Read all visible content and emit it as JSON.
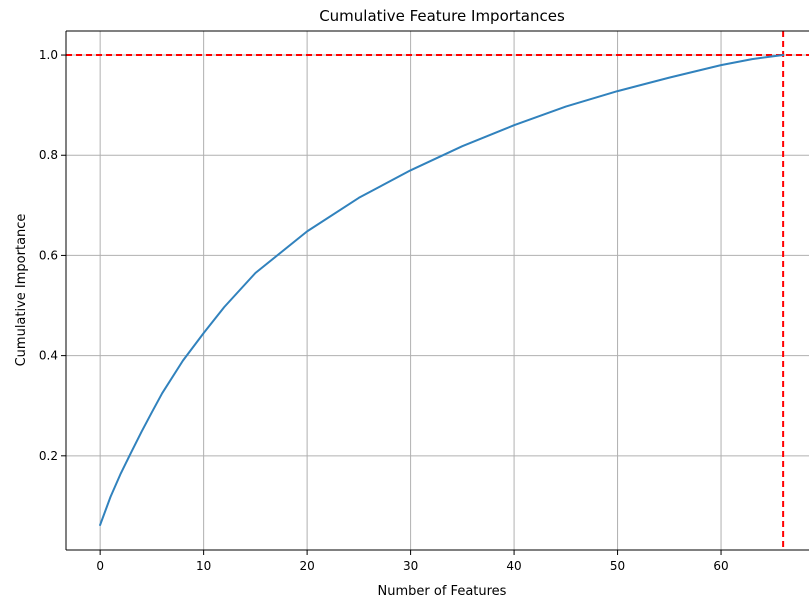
{
  "chart_data": {
    "type": "line",
    "title": "Cumulative Feature Importances",
    "xlabel": "Number of Features",
    "ylabel": "Cumulative Importance",
    "xlim": [
      -3.3,
      68.5
    ],
    "ylim": [
      0.012,
      1.048
    ],
    "xticks": [
      0,
      10,
      20,
      30,
      40,
      50,
      60
    ],
    "yticks": [
      0.2,
      0.4,
      0.6,
      0.8,
      1.0
    ],
    "grid": true,
    "series": [
      {
        "color": "#3182bd",
        "x": [
          0,
          1,
          2,
          3,
          4,
          5,
          6,
          8,
          10,
          12,
          15,
          20,
          25,
          30,
          35,
          40,
          45,
          50,
          55,
          60,
          63,
          66
        ],
        "y": [
          0.062,
          0.118,
          0.165,
          0.207,
          0.248,
          0.287,
          0.325,
          0.39,
          0.445,
          0.497,
          0.565,
          0.648,
          0.715,
          0.77,
          0.818,
          0.86,
          0.897,
          0.928,
          0.955,
          0.98,
          0.992,
          1.0
        ]
      }
    ],
    "reference_lines": [
      {
        "orientation": "horizontal",
        "value": 1.0,
        "color": "#ff0000",
        "style": "dashed"
      },
      {
        "orientation": "vertical",
        "value": 66,
        "color": "#ff0000",
        "style": "dashed"
      }
    ]
  }
}
